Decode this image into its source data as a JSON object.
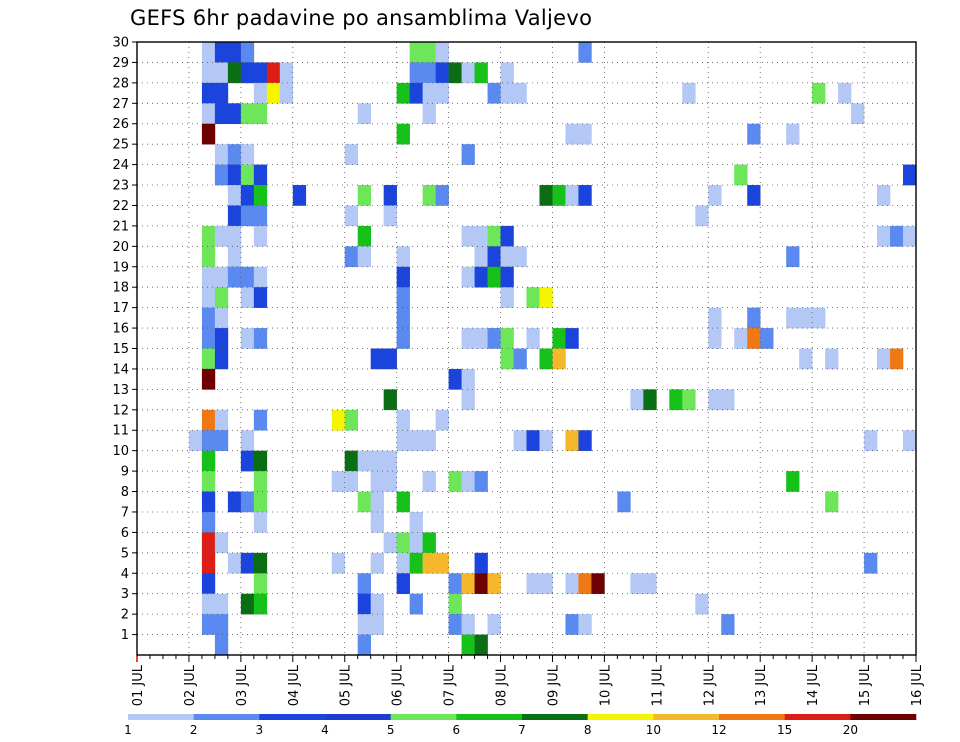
{
  "chart_data": {
    "type": "heatmap",
    "title": "GEFS 6hr padavine po ansamblima Valjevo",
    "x_tick_labels": [
      "01 JUL",
      "02 JUL",
      "03 JUL",
      "04 JUL",
      "05 JUL",
      "06 JUL",
      "07 JUL",
      "08 JUL",
      "09 JUL",
      "10 JUL",
      "11 JUL",
      "12 JUL",
      "13 JUL",
      "14 JUL",
      "15 JUL",
      "16 JUL"
    ],
    "y_tick_labels": [
      "1",
      "2",
      "3",
      "4",
      "5",
      "6",
      "7",
      "8",
      "9",
      "10",
      "11",
      "12",
      "13",
      "14",
      "15",
      "16",
      "17",
      "18",
      "19",
      "20",
      "21",
      "22",
      "23",
      "24",
      "25",
      "26",
      "27",
      "28",
      "29",
      "30"
    ],
    "xlim": [
      0,
      15
    ],
    "ylim": [
      0,
      30
    ],
    "time_step_days": 0.25,
    "legend": {
      "labels": [
        "1",
        "2",
        "3",
        "4",
        "5",
        "6",
        "7",
        "8",
        "10",
        "12",
        "15",
        "20"
      ],
      "colors": [
        "#b4c8f5",
        "#5a8af0",
        "#1a44dc",
        "#1e3cd2",
        "#6ee65a",
        "#16c21a",
        "#0a6e14",
        "#f5f500",
        "#f5b82d",
        "#f07814",
        "#dc1e14",
        "#6e0000"
      ]
    },
    "class_colors": [
      "#b4c8f5",
      "#5a8af0",
      "#1a44dc",
      "#6ee65a",
      "#16c21a",
      "#0a6e14",
      "#f5f500",
      "#f5b82d",
      "#f07814",
      "#dc1e14",
      "#6e0000"
    ],
    "cells_note": "each cell: [time_index (6h steps from 01 JUL 00UTC), member_row, class_index]",
    "cells": [
      [
        5,
        30,
        0
      ],
      [
        6,
        30,
        2
      ],
      [
        7,
        30,
        2
      ],
      [
        8,
        30,
        1
      ],
      [
        21,
        30,
        3
      ],
      [
        22,
        30,
        3
      ],
      [
        23,
        30,
        0
      ],
      [
        34,
        30,
        1
      ],
      [
        5,
        29,
        0
      ],
      [
        6,
        29,
        0
      ],
      [
        7,
        29,
        5
      ],
      [
        8,
        29,
        2
      ],
      [
        9,
        29,
        2
      ],
      [
        10,
        29,
        9
      ],
      [
        11,
        29,
        0
      ],
      [
        21,
        29,
        1
      ],
      [
        22,
        29,
        1
      ],
      [
        23,
        29,
        2
      ],
      [
        24,
        29,
        5
      ],
      [
        25,
        29,
        0
      ],
      [
        26,
        29,
        4
      ],
      [
        28,
        29,
        0
      ],
      [
        5,
        28,
        2
      ],
      [
        6,
        28,
        2
      ],
      [
        9,
        28,
        0
      ],
      [
        10,
        28,
        6
      ],
      [
        11,
        28,
        0
      ],
      [
        20,
        28,
        4
      ],
      [
        21,
        28,
        2
      ],
      [
        22,
        28,
        0
      ],
      [
        23,
        28,
        0
      ],
      [
        27,
        28,
        1
      ],
      [
        28,
        28,
        0
      ],
      [
        29,
        28,
        0
      ],
      [
        42,
        28,
        0
      ],
      [
        52,
        28,
        3
      ],
      [
        54,
        28,
        0
      ],
      [
        5,
        27,
        0
      ],
      [
        6,
        27,
        2
      ],
      [
        7,
        27,
        2
      ],
      [
        8,
        27,
        3
      ],
      [
        9,
        27,
        3
      ],
      [
        17,
        27,
        0
      ],
      [
        22,
        27,
        0
      ],
      [
        55,
        27,
        0
      ],
      [
        5,
        26,
        10
      ],
      [
        20,
        26,
        4
      ],
      [
        33,
        26,
        0
      ],
      [
        34,
        26,
        0
      ],
      [
        47,
        26,
        1
      ],
      [
        50,
        26,
        0
      ],
      [
        6,
        25,
        0
      ],
      [
        7,
        25,
        1
      ],
      [
        8,
        25,
        0
      ],
      [
        16,
        25,
        0
      ],
      [
        25,
        25,
        1
      ],
      [
        6,
        24,
        1
      ],
      [
        7,
        24,
        2
      ],
      [
        8,
        24,
        3
      ],
      [
        9,
        24,
        2
      ],
      [
        46,
        24,
        3
      ],
      [
        59,
        24,
        2
      ],
      [
        7,
        23,
        0
      ],
      [
        8,
        23,
        2
      ],
      [
        9,
        23,
        4
      ],
      [
        12,
        23,
        2
      ],
      [
        17,
        23,
        3
      ],
      [
        19,
        23,
        2
      ],
      [
        22,
        23,
        3
      ],
      [
        23,
        23,
        1
      ],
      [
        31,
        23,
        5
      ],
      [
        32,
        23,
        4
      ],
      [
        33,
        23,
        0
      ],
      [
        34,
        23,
        2
      ],
      [
        44,
        23,
        0
      ],
      [
        47,
        23,
        2
      ],
      [
        57,
        23,
        0
      ],
      [
        7,
        22,
        2
      ],
      [
        8,
        22,
        1
      ],
      [
        9,
        22,
        1
      ],
      [
        16,
        22,
        0
      ],
      [
        19,
        22,
        0
      ],
      [
        43,
        22,
        0
      ],
      [
        5,
        21,
        3
      ],
      [
        6,
        21,
        0
      ],
      [
        7,
        21,
        0
      ],
      [
        9,
        21,
        0
      ],
      [
        17,
        21,
        4
      ],
      [
        25,
        21,
        0
      ],
      [
        26,
        21,
        0
      ],
      [
        27,
        21,
        3
      ],
      [
        28,
        21,
        2
      ],
      [
        57,
        21,
        0
      ],
      [
        58,
        21,
        1
      ],
      [
        59,
        21,
        0
      ],
      [
        5,
        20,
        3
      ],
      [
        7,
        20,
        0
      ],
      [
        16,
        20,
        1
      ],
      [
        17,
        20,
        0
      ],
      [
        20,
        20,
        0
      ],
      [
        26,
        20,
        0
      ],
      [
        27,
        20,
        2
      ],
      [
        28,
        20,
        0
      ],
      [
        29,
        20,
        0
      ],
      [
        50,
        20,
        1
      ],
      [
        5,
        19,
        0
      ],
      [
        6,
        19,
        0
      ],
      [
        7,
        19,
        1
      ],
      [
        8,
        19,
        1
      ],
      [
        9,
        19,
        0
      ],
      [
        20,
        19,
        2
      ],
      [
        25,
        19,
        0
      ],
      [
        26,
        19,
        2
      ],
      [
        27,
        19,
        4
      ],
      [
        28,
        19,
        2
      ],
      [
        5,
        18,
        0
      ],
      [
        6,
        18,
        3
      ],
      [
        8,
        18,
        0
      ],
      [
        9,
        18,
        2
      ],
      [
        20,
        18,
        1
      ],
      [
        28,
        18,
        0
      ],
      [
        30,
        18,
        3
      ],
      [
        31,
        18,
        6
      ],
      [
        5,
        17,
        1
      ],
      [
        6,
        17,
        0
      ],
      [
        20,
        17,
        1
      ],
      [
        44,
        17,
        0
      ],
      [
        47,
        17,
        1
      ],
      [
        50,
        17,
        0
      ],
      [
        51,
        17,
        0
      ],
      [
        52,
        17,
        0
      ],
      [
        5,
        16,
        1
      ],
      [
        6,
        16,
        2
      ],
      [
        8,
        16,
        0
      ],
      [
        9,
        16,
        1
      ],
      [
        20,
        16,
        1
      ],
      [
        25,
        16,
        0
      ],
      [
        26,
        16,
        0
      ],
      [
        27,
        16,
        1
      ],
      [
        28,
        16,
        3
      ],
      [
        30,
        16,
        0
      ],
      [
        32,
        16,
        4
      ],
      [
        33,
        16,
        2
      ],
      [
        44,
        16,
        0
      ],
      [
        46,
        16,
        0
      ],
      [
        47,
        16,
        8
      ],
      [
        48,
        16,
        1
      ],
      [
        5,
        15,
        3
      ],
      [
        6,
        15,
        2
      ],
      [
        18,
        15,
        2
      ],
      [
        19,
        15,
        2
      ],
      [
        28,
        15,
        3
      ],
      [
        29,
        15,
        1
      ],
      [
        31,
        15,
        4
      ],
      [
        32,
        15,
        7
      ],
      [
        51,
        15,
        0
      ],
      [
        53,
        15,
        0
      ],
      [
        57,
        15,
        0
      ],
      [
        58,
        15,
        8
      ],
      [
        5,
        14,
        10
      ],
      [
        24,
        14,
        2
      ],
      [
        25,
        14,
        0
      ],
      [
        19,
        13,
        5
      ],
      [
        25,
        13,
        0
      ],
      [
        38,
        13,
        0
      ],
      [
        39,
        13,
        5
      ],
      [
        41,
        13,
        4
      ],
      [
        42,
        13,
        3
      ],
      [
        44,
        13,
        0
      ],
      [
        45,
        13,
        0
      ],
      [
        5,
        12,
        8
      ],
      [
        6,
        12,
        0
      ],
      [
        9,
        12,
        1
      ],
      [
        15,
        12,
        6
      ],
      [
        16,
        12,
        3
      ],
      [
        20,
        12,
        0
      ],
      [
        23,
        12,
        0
      ],
      [
        4,
        11,
        0
      ],
      [
        5,
        11,
        1
      ],
      [
        6,
        11,
        1
      ],
      [
        8,
        11,
        0
      ],
      [
        20,
        11,
        0
      ],
      [
        21,
        11,
        0
      ],
      [
        22,
        11,
        0
      ],
      [
        29,
        11,
        0
      ],
      [
        30,
        11,
        2
      ],
      [
        31,
        11,
        0
      ],
      [
        33,
        11,
        7
      ],
      [
        34,
        11,
        2
      ],
      [
        56,
        11,
        0
      ],
      [
        59,
        11,
        0
      ],
      [
        5,
        10,
        4
      ],
      [
        8,
        10,
        2
      ],
      [
        9,
        10,
        5
      ],
      [
        16,
        10,
        5
      ],
      [
        17,
        10,
        0
      ],
      [
        18,
        10,
        0
      ],
      [
        19,
        10,
        0
      ],
      [
        5,
        9,
        3
      ],
      [
        9,
        9,
        3
      ],
      [
        15,
        9,
        0
      ],
      [
        16,
        9,
        0
      ],
      [
        18,
        9,
        0
      ],
      [
        19,
        9,
        0
      ],
      [
        22,
        9,
        0
      ],
      [
        24,
        9,
        3
      ],
      [
        25,
        9,
        0
      ],
      [
        26,
        9,
        1
      ],
      [
        50,
        9,
        4
      ],
      [
        5,
        8,
        2
      ],
      [
        7,
        8,
        2
      ],
      [
        8,
        8,
        1
      ],
      [
        9,
        8,
        3
      ],
      [
        17,
        8,
        3
      ],
      [
        18,
        8,
        0
      ],
      [
        20,
        8,
        4
      ],
      [
        37,
        8,
        1
      ],
      [
        53,
        8,
        3
      ],
      [
        5,
        7,
        1
      ],
      [
        9,
        7,
        0
      ],
      [
        18,
        7,
        0
      ],
      [
        21,
        7,
        0
      ],
      [
        5,
        6,
        9
      ],
      [
        6,
        6,
        0
      ],
      [
        19,
        6,
        0
      ],
      [
        20,
        6,
        3
      ],
      [
        21,
        6,
        0
      ],
      [
        22,
        6,
        4
      ],
      [
        5,
        5,
        9
      ],
      [
        7,
        5,
        0
      ],
      [
        8,
        5,
        2
      ],
      [
        9,
        5,
        5
      ],
      [
        15,
        5,
        0
      ],
      [
        18,
        5,
        0
      ],
      [
        20,
        5,
        0
      ],
      [
        21,
        5,
        4
      ],
      [
        22,
        5,
        7
      ],
      [
        23,
        5,
        7
      ],
      [
        26,
        5,
        2
      ],
      [
        56,
        5,
        1
      ],
      [
        5,
        4,
        2
      ],
      [
        9,
        4,
        3
      ],
      [
        17,
        4,
        1
      ],
      [
        20,
        4,
        2
      ],
      [
        24,
        4,
        1
      ],
      [
        25,
        4,
        7
      ],
      [
        26,
        4,
        10
      ],
      [
        27,
        4,
        7
      ],
      [
        30,
        4,
        0
      ],
      [
        31,
        4,
        0
      ],
      [
        33,
        4,
        0
      ],
      [
        34,
        4,
        8
      ],
      [
        35,
        4,
        10
      ],
      [
        38,
        4,
        0
      ],
      [
        39,
        4,
        0
      ],
      [
        5,
        3,
        0
      ],
      [
        6,
        3,
        0
      ],
      [
        8,
        3,
        5
      ],
      [
        9,
        3,
        4
      ],
      [
        17,
        3,
        2
      ],
      [
        18,
        3,
        0
      ],
      [
        21,
        3,
        1
      ],
      [
        24,
        3,
        3
      ],
      [
        43,
        3,
        0
      ],
      [
        5,
        2,
        1
      ],
      [
        6,
        2,
        1
      ],
      [
        17,
        2,
        0
      ],
      [
        18,
        2,
        0
      ],
      [
        24,
        2,
        1
      ],
      [
        25,
        2,
        0
      ],
      [
        27,
        2,
        0
      ],
      [
        33,
        2,
        1
      ],
      [
        34,
        2,
        0
      ],
      [
        45,
        2,
        1
      ],
      [
        6,
        1,
        1
      ],
      [
        17,
        1,
        1
      ],
      [
        25,
        1,
        4
      ],
      [
        26,
        1,
        5
      ]
    ]
  }
}
